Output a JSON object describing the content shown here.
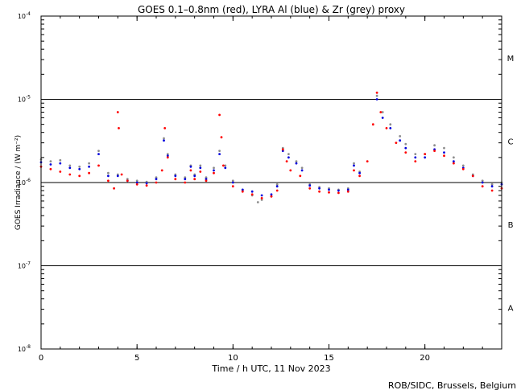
{
  "chart_data": {
    "type": "scatter",
    "title": "GOES 0.1–0.8nm (red), LYRA Al (blue) & Zr (grey) proxy",
    "xlabel": "Time / h UTC, 11 Nov 2023",
    "ylabel": "GOES Irradiance / (W m⁻²)",
    "xlim": [
      0,
      24
    ],
    "ylim": [
      1e-08,
      0.0001
    ],
    "yscale": "log",
    "x_ticks": [
      {
        "value": 0,
        "label": "0"
      },
      {
        "value": 5,
        "label": "5"
      },
      {
        "value": 10,
        "label": "10"
      },
      {
        "value": 15,
        "label": "15"
      },
      {
        "value": 20,
        "label": "20"
      }
    ],
    "y_ticks": [
      {
        "value": 1e-08,
        "base": "10",
        "exp": "-8"
      },
      {
        "value": 1e-07,
        "base": "10",
        "exp": "-7"
      },
      {
        "value": 1e-06,
        "base": "10",
        "exp": "-6"
      },
      {
        "value": 1e-05,
        "base": "10",
        "exp": "-5"
      },
      {
        "value": 0.0001,
        "base": "10",
        "exp": "-4"
      }
    ],
    "flare_classes": [
      {
        "label": "A",
        "center": 3.16e-08
      },
      {
        "label": "B",
        "center": 3.16e-07
      },
      {
        "label": "C",
        "center": 3.16e-06
      },
      {
        "label": "M",
        "center": 3.16e-05
      }
    ],
    "reference_lines": [
      1e-07,
      1e-06,
      1e-05
    ],
    "series": [
      {
        "name": "GOES 0.1–0.8nm",
        "color": "#ff0000",
        "points": [
          [
            0,
            1.55e-06
          ],
          [
            0.5,
            1.45e-06
          ],
          [
            1,
            1.35e-06
          ],
          [
            1.5,
            1.25e-06
          ],
          [
            2,
            1.2e-06
          ],
          [
            2.5,
            1.3e-06
          ],
          [
            3,
            1.6e-06
          ],
          [
            3.5,
            1.05e-06
          ],
          [
            3.8,
            8.5e-07
          ],
          [
            4,
            7e-06
          ],
          [
            4.05,
            4.5e-06
          ],
          [
            4.2,
            1.25e-06
          ],
          [
            4.5,
            1.05e-06
          ],
          [
            5,
            9.5e-07
          ],
          [
            5.5,
            9.2e-07
          ],
          [
            6,
            1e-06
          ],
          [
            6.3,
            1.4e-06
          ],
          [
            6.45,
            4.5e-06
          ],
          [
            6.6,
            2e-06
          ],
          [
            7,
            1.1e-06
          ],
          [
            7.5,
            1e-06
          ],
          [
            7.8,
            1.4e-06
          ],
          [
            8,
            1.1e-06
          ],
          [
            8.3,
            1.35e-06
          ],
          [
            8.6,
            1.05e-06
          ],
          [
            9,
            1.3e-06
          ],
          [
            9.3,
            6.5e-06
          ],
          [
            9.4,
            3.5e-06
          ],
          [
            9.5,
            1.6e-06
          ],
          [
            10,
            9e-07
          ],
          [
            10.5,
            7.8e-07
          ],
          [
            11,
            7.2e-07
          ],
          [
            11.5,
            6.5e-07
          ],
          [
            12,
            6.8e-07
          ],
          [
            12.3,
            8e-07
          ],
          [
            12.6,
            2.5e-06
          ],
          [
            12.8,
            1.8e-06
          ],
          [
            13,
            1.4e-06
          ],
          [
            13.5,
            1.2e-06
          ],
          [
            14,
            8.5e-07
          ],
          [
            14.5,
            7.8e-07
          ],
          [
            15,
            7.6e-07
          ],
          [
            15.5,
            7.5e-07
          ],
          [
            16,
            7.8e-07
          ],
          [
            16.3,
            1.4e-06
          ],
          [
            16.6,
            1.2e-06
          ],
          [
            17,
            1.8e-06
          ],
          [
            17.3,
            5e-06
          ],
          [
            17.5,
            1.2e-05
          ],
          [
            17.7,
            7e-06
          ],
          [
            18,
            4.5e-06
          ],
          [
            18.5,
            3e-06
          ],
          [
            19,
            2.3e-06
          ],
          [
            19.5,
            1.8e-06
          ],
          [
            20,
            2.2e-06
          ],
          [
            20.5,
            2.4e-06
          ],
          [
            21,
            2.1e-06
          ],
          [
            21.5,
            1.7e-06
          ],
          [
            22,
            1.45e-06
          ],
          [
            22.5,
            1.2e-06
          ],
          [
            23,
            9e-07
          ],
          [
            23.5,
            8e-07
          ],
          [
            24,
            8.5e-07
          ]
        ]
      },
      {
        "name": "LYRA Al",
        "color": "#0000dd",
        "points": [
          [
            0,
            1.75e-06
          ],
          [
            0.5,
            1.65e-06
          ],
          [
            1,
            1.7e-06
          ],
          [
            1.5,
            1.5e-06
          ],
          [
            2,
            1.45e-06
          ],
          [
            2.5,
            1.55e-06
          ],
          [
            3,
            2.2e-06
          ],
          [
            3.5,
            1.2e-06
          ],
          [
            4,
            1.2e-06
          ],
          [
            4.5,
            1.05e-06
          ],
          [
            5,
            1e-06
          ],
          [
            5.5,
            9.8e-07
          ],
          [
            6,
            1.1e-06
          ],
          [
            6.4,
            3.2e-06
          ],
          [
            6.6,
            2.1e-06
          ],
          [
            7,
            1.2e-06
          ],
          [
            7.5,
            1.1e-06
          ],
          [
            7.8,
            1.55e-06
          ],
          [
            8,
            1.2e-06
          ],
          [
            8.3,
            1.5e-06
          ],
          [
            8.6,
            1.1e-06
          ],
          [
            9,
            1.4e-06
          ],
          [
            9.3,
            2.2e-06
          ],
          [
            9.6,
            1.5e-06
          ],
          [
            10,
            1e-06
          ],
          [
            10.5,
            8.2e-07
          ],
          [
            11,
            7.8e-07
          ],
          [
            11.5,
            7e-07
          ],
          [
            12,
            7.2e-07
          ],
          [
            12.3,
            9e-07
          ],
          [
            12.6,
            2.4e-06
          ],
          [
            12.9,
            2e-06
          ],
          [
            13.3,
            1.7e-06
          ],
          [
            13.6,
            1.4e-06
          ],
          [
            14,
            9.2e-07
          ],
          [
            14.5,
            8.5e-07
          ],
          [
            15,
            8.2e-07
          ],
          [
            15.5,
            8e-07
          ],
          [
            16,
            8.2e-07
          ],
          [
            16.3,
            1.6e-06
          ],
          [
            16.6,
            1.3e-06
          ],
          [
            17.5,
            1e-05
          ],
          [
            17.8,
            6e-06
          ],
          [
            18.2,
            4.5e-06
          ],
          [
            18.7,
            3.2e-06
          ],
          [
            19,
            2.6e-06
          ],
          [
            19.5,
            2e-06
          ],
          [
            20,
            2e-06
          ],
          [
            20.5,
            2.5e-06
          ],
          [
            21,
            2.3e-06
          ],
          [
            21.5,
            1.8e-06
          ],
          [
            22,
            1.5e-06
          ],
          [
            22.5,
            1.2e-06
          ],
          [
            23,
            1e-06
          ],
          [
            23.5,
            9e-07
          ],
          [
            24,
            9.5e-07
          ]
        ]
      },
      {
        "name": "LYRA Zr",
        "color": "#8c8c8c",
        "points": [
          [
            0,
            1.9e-06
          ],
          [
            0.5,
            1.8e-06
          ],
          [
            1,
            1.85e-06
          ],
          [
            1.5,
            1.6e-06
          ],
          [
            2,
            1.55e-06
          ],
          [
            2.5,
            1.7e-06
          ],
          [
            3,
            2.4e-06
          ],
          [
            3.5,
            1.3e-06
          ],
          [
            4,
            1.25e-06
          ],
          [
            4.5,
            1.1e-06
          ],
          [
            5,
            1.05e-06
          ],
          [
            5.5,
            1.02e-06
          ],
          [
            6,
            1.15e-06
          ],
          [
            6.4,
            3.4e-06
          ],
          [
            6.6,
            2.2e-06
          ],
          [
            7,
            1.25e-06
          ],
          [
            7.5,
            1.15e-06
          ],
          [
            7.8,
            1.6e-06
          ],
          [
            8,
            1.25e-06
          ],
          [
            8.3,
            1.6e-06
          ],
          [
            8.6,
            1.15e-06
          ],
          [
            9,
            1.5e-06
          ],
          [
            9.3,
            2.4e-06
          ],
          [
            9.6,
            1.6e-06
          ],
          [
            10,
            1.05e-06
          ],
          [
            10.5,
            8e-07
          ],
          [
            11,
            7e-07
          ],
          [
            11.3,
            5.8e-07
          ],
          [
            11.5,
            6.2e-07
          ],
          [
            12,
            6.8e-07
          ],
          [
            12.3,
            9.5e-07
          ],
          [
            12.6,
            2.6e-06
          ],
          [
            12.9,
            2.2e-06
          ],
          [
            13.3,
            1.8e-06
          ],
          [
            13.6,
            1.5e-06
          ],
          [
            14,
            9.5e-07
          ],
          [
            14.5,
            8.8e-07
          ],
          [
            15,
            8.5e-07
          ],
          [
            15.5,
            8.2e-07
          ],
          [
            16,
            8.5e-07
          ],
          [
            16.3,
            1.7e-06
          ],
          [
            16.6,
            1.35e-06
          ],
          [
            17.5,
            1.1e-05
          ],
          [
            17.8,
            7e-06
          ],
          [
            18.2,
            5e-06
          ],
          [
            18.7,
            3.6e-06
          ],
          [
            19,
            2.9e-06
          ],
          [
            19.5,
            2.2e-06
          ],
          [
            20,
            2.2e-06
          ],
          [
            20.5,
            2.8e-06
          ],
          [
            21,
            2.6e-06
          ],
          [
            21.5,
            2e-06
          ],
          [
            22,
            1.6e-06
          ],
          [
            22.5,
            1.25e-06
          ],
          [
            23,
            1.05e-06
          ],
          [
            23.5,
            9.5e-07
          ],
          [
            24,
            1e-06
          ]
        ]
      }
    ]
  },
  "credit": "ROB/SIDC, Brussels, Belgium"
}
